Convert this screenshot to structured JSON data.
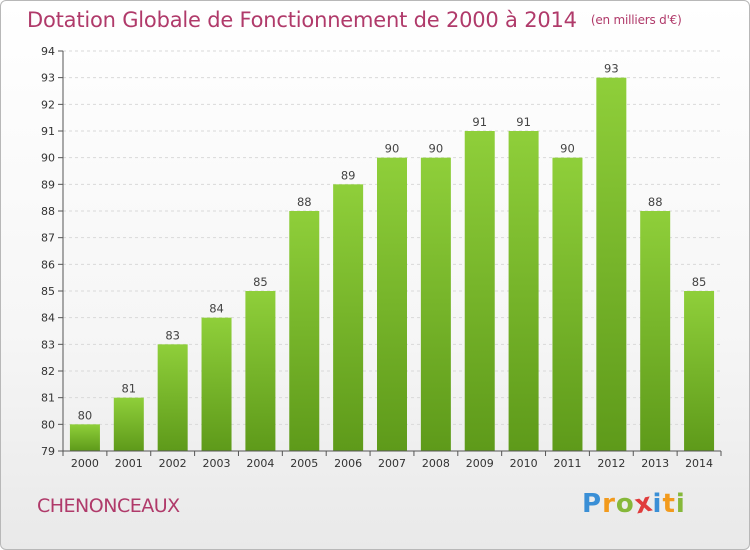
{
  "chart_data": {
    "type": "bar",
    "title": "Dotation Globale de Fonctionnement de 2000 à 2014",
    "unit_note": "(en milliers d'€)",
    "categories": [
      "2000",
      "2001",
      "2002",
      "2003",
      "2004",
      "2005",
      "2006",
      "2007",
      "2008",
      "2009",
      "2010",
      "2011",
      "2012",
      "2013",
      "2014"
    ],
    "values": [
      80,
      81,
      83,
      84,
      85,
      88,
      89,
      90,
      90,
      91,
      91,
      90,
      93,
      88,
      85
    ],
    "ylim": [
      79,
      94
    ],
    "yticks": [
      79,
      80,
      81,
      82,
      83,
      84,
      85,
      86,
      87,
      88,
      89,
      90,
      91,
      92,
      93,
      94
    ],
    "grid": true,
    "bar_color": "#7cba2c",
    "xlabel": "",
    "ylabel": ""
  },
  "place_name": "CHENONCEAUX",
  "logo": {
    "letters": [
      "P",
      "r",
      "o",
      "x",
      "i",
      "t",
      "i"
    ],
    "colors": [
      "#3a8fd6",
      "#f29a1c",
      "#86b83a",
      "#e03c3c",
      "#3a8fd6",
      "#f29a1c",
      "#86b83a"
    ]
  },
  "colors": {
    "title": "#b03a6a",
    "grid": "#d9d9d9",
    "axis": "#555555"
  }
}
